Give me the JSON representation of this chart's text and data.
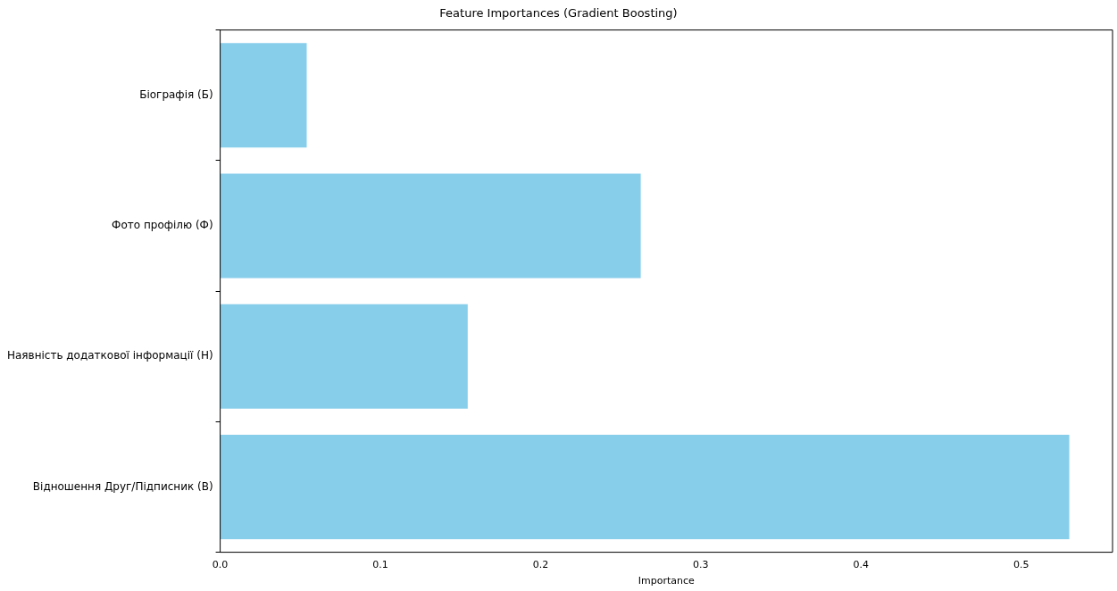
{
  "chart_data": {
    "type": "bar",
    "orientation": "horizontal",
    "title": "Feature Importances (Gradient Boosting)",
    "xlabel": "Importance",
    "categories": [
      "Біографія (Б)",
      "Фото профілю (Ф)",
      "Наявність додаткової інформації (Н)",
      "Відношення Друг/Підписник (В)"
    ],
    "values": [
      0.054,
      0.2625,
      0.1545,
      0.53
    ],
    "color": "#87ceeb",
    "xlim": [
      0,
      0.557
    ],
    "xticks": [
      {
        "value": 0,
        "label": "0.0"
      },
      0.1,
      0.2,
      0.3,
      0.4,
      0.5
    ],
    "grid": false,
    "legend": false
  }
}
